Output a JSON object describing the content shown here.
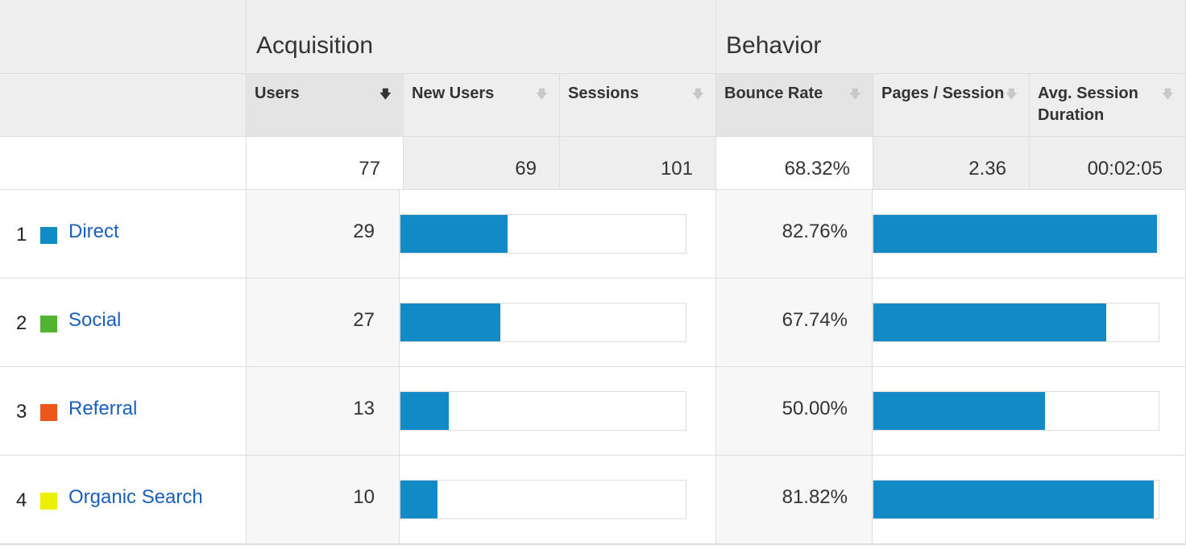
{
  "groups": {
    "acquisition": "Acquisition",
    "behavior": "Behavior"
  },
  "columns": [
    {
      "label": "Users",
      "sorted": true
    },
    {
      "label": "New Users",
      "sorted": false
    },
    {
      "label": "Sessions",
      "sorted": false
    },
    {
      "label": "Bounce Rate",
      "sorted": false
    },
    {
      "label": "Pages / Session",
      "sorted": false
    },
    {
      "label": "Avg. Session Duration",
      "sorted": false
    }
  ],
  "totals": [
    "77",
    "69",
    "101",
    "68.32%",
    "2.36",
    "00:02:05"
  ],
  "rows": [
    {
      "rank": "1",
      "channel": "Direct",
      "users": "29",
      "bounce_rate": "82.76%",
      "swatch_color": "#118ac6",
      "users_bar_fraction": 0.376,
      "bounce_bar_fraction": 1.0
    },
    {
      "rank": "2",
      "channel": "Social",
      "users": "27",
      "bounce_rate": "67.74%",
      "swatch_color": "#50b432",
      "users_bar_fraction": 0.351,
      "bounce_bar_fraction": 0.818
    },
    {
      "rank": "3",
      "channel": "Referral",
      "users": "13",
      "bounce_rate": "50.00%",
      "swatch_color": "#ed561b",
      "users_bar_fraction": 0.169,
      "bounce_bar_fraction": 0.604
    },
    {
      "rank": "4",
      "channel": "Organic Search",
      "users": "10",
      "bounce_rate": "81.82%",
      "swatch_color": "#edef00",
      "users_bar_fraction": 0.13,
      "bounce_bar_fraction": 0.988
    }
  ]
}
